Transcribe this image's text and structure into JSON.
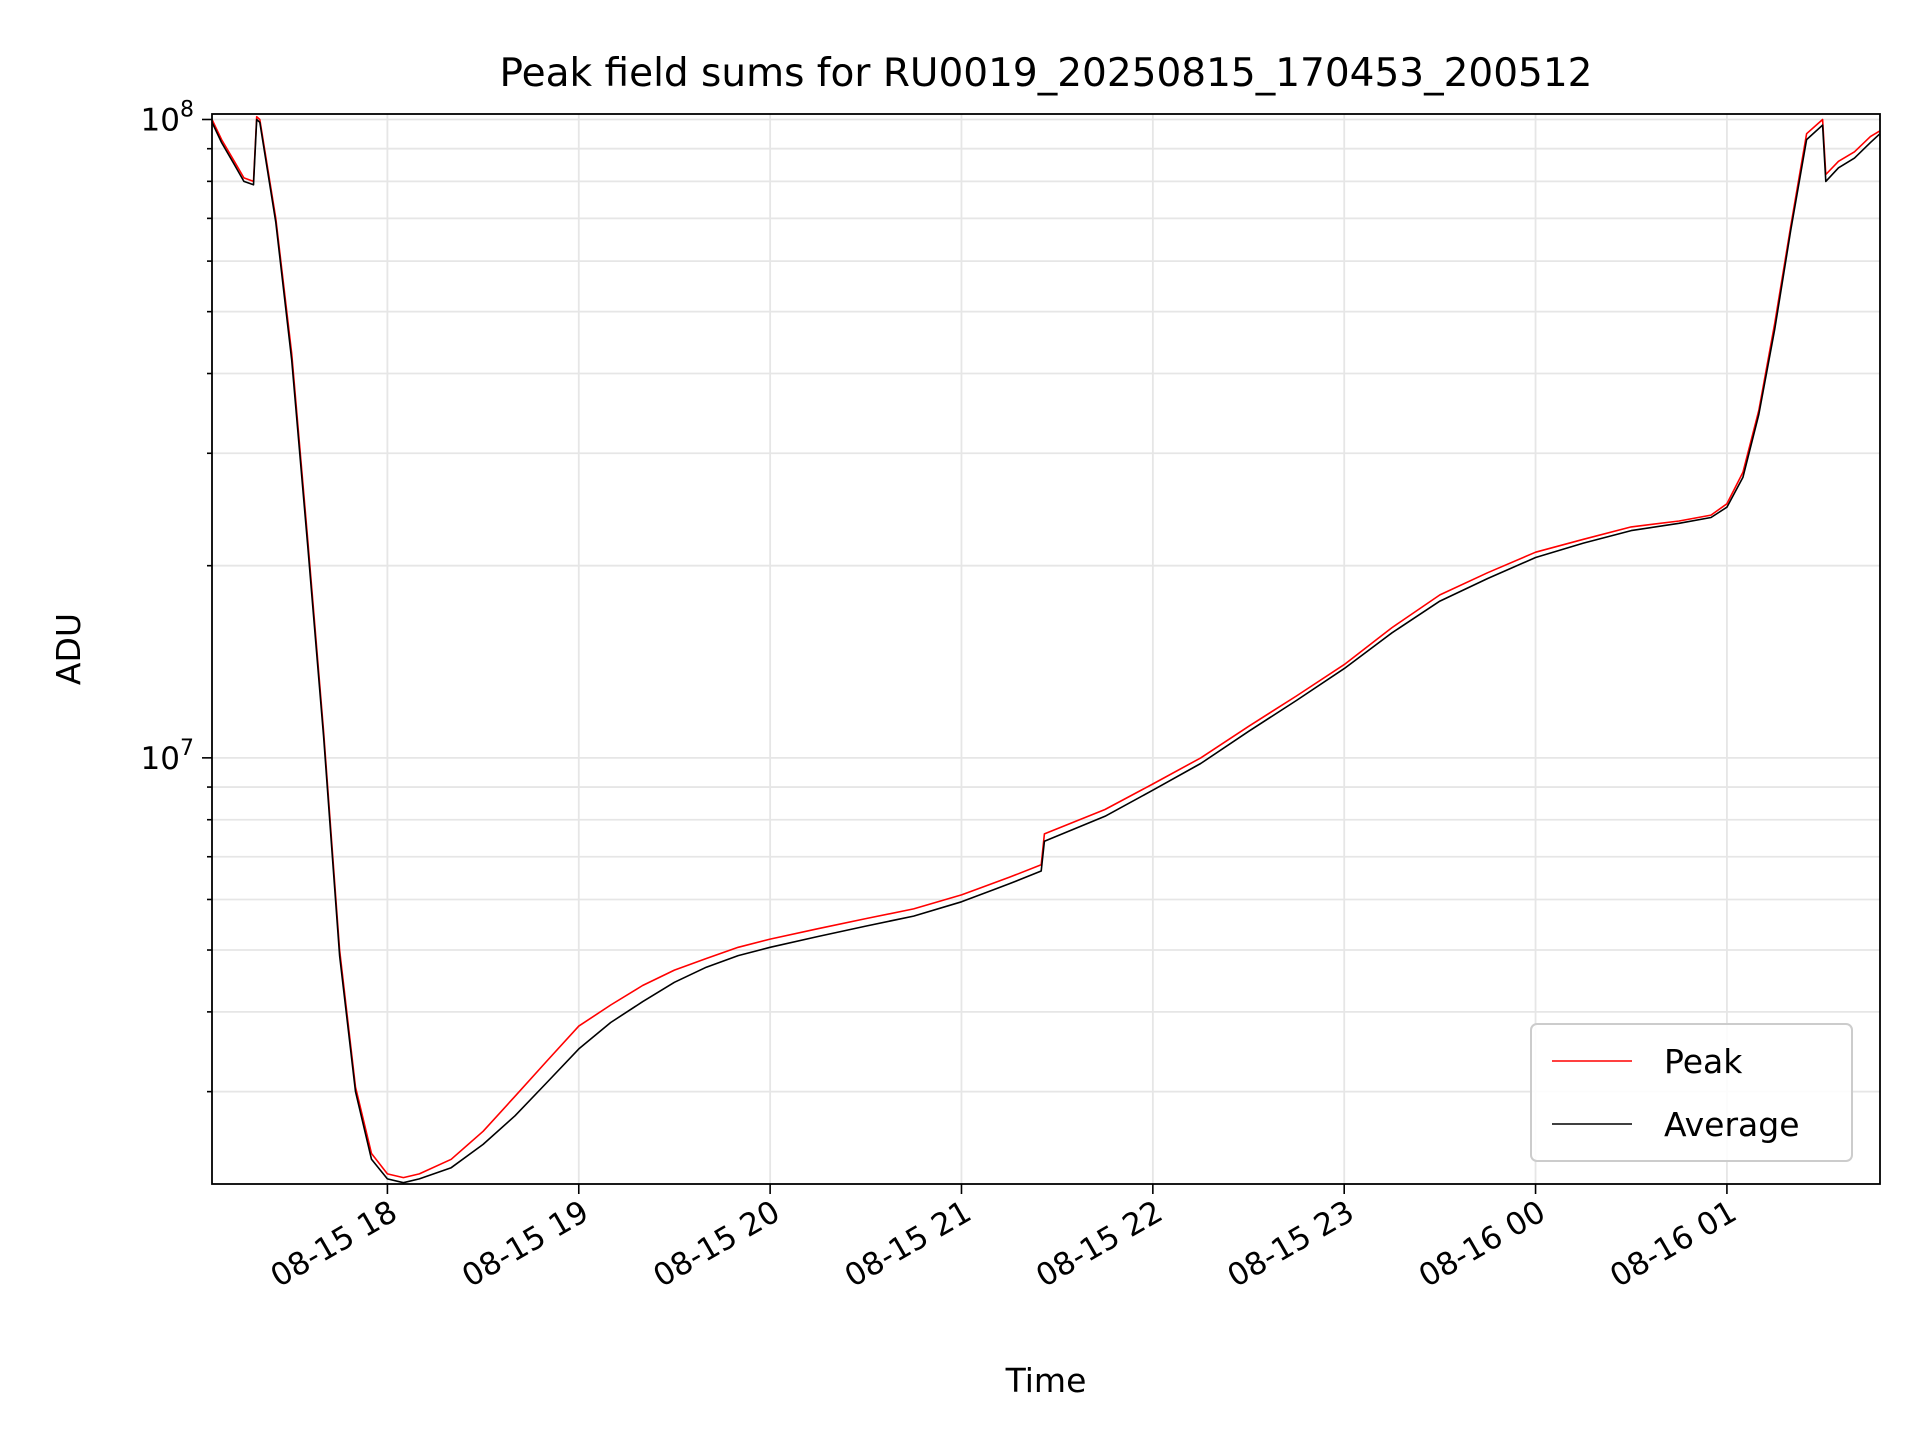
{
  "chart_data": {
    "type": "line",
    "title": "Peak field sums for RU0019_20250815_170453_200512",
    "xlabel": "Time",
    "ylabel": "ADU",
    "yscale": "log",
    "xlim": [
      "2025-08-15 17:05",
      "2025-08-16 01:48"
    ],
    "ylim": [
      2150000,
      102000000
    ],
    "grid": true,
    "legend_position": "lower-right",
    "x_tick_labels": [
      "08-15 18",
      "08-15 19",
      "08-15 20",
      "08-15 21",
      "08-15 22",
      "08-15 23",
      "08-16 00",
      "08-16 01"
    ],
    "x_ticks": [
      "2025-08-15 18:00",
      "2025-08-15 19:00",
      "2025-08-15 20:00",
      "2025-08-15 21:00",
      "2025-08-15 22:00",
      "2025-08-15 23:00",
      "2025-08-16 00:00",
      "2025-08-16 01:00"
    ],
    "y_tick_labels": [
      {
        "value": 10000000,
        "base": "10",
        "exp": "7"
      },
      {
        "value": 100000000,
        "base": "10",
        "exp": "8"
      }
    ],
    "x": [
      "2025-08-15 17:05",
      "2025-08-15 17:08",
      "2025-08-15 17:12",
      "2025-08-15 17:15",
      "2025-08-15 17:18",
      "2025-08-15 17:19",
      "2025-08-15 17:20",
      "2025-08-15 17:25",
      "2025-08-15 17:30",
      "2025-08-15 17:35",
      "2025-08-15 17:40",
      "2025-08-15 17:45",
      "2025-08-15 17:50",
      "2025-08-15 17:55",
      "2025-08-15 18:00",
      "2025-08-15 18:05",
      "2025-08-15 18:10",
      "2025-08-15 18:20",
      "2025-08-15 18:30",
      "2025-08-15 18:40",
      "2025-08-15 18:50",
      "2025-08-15 19:00",
      "2025-08-15 19:10",
      "2025-08-15 19:20",
      "2025-08-15 19:30",
      "2025-08-15 19:40",
      "2025-08-15 19:50",
      "2025-08-15 20:00",
      "2025-08-15 20:15",
      "2025-08-15 20:30",
      "2025-08-15 20:45",
      "2025-08-15 21:00",
      "2025-08-15 21:15",
      "2025-08-15 21:25",
      "2025-08-15 21:26",
      "2025-08-15 21:45",
      "2025-08-15 22:00",
      "2025-08-15 22:15",
      "2025-08-15 22:30",
      "2025-08-15 22:45",
      "2025-08-15 23:00",
      "2025-08-15 23:15",
      "2025-08-15 23:30",
      "2025-08-15 23:45",
      "2025-08-16 00:00",
      "2025-08-16 00:15",
      "2025-08-16 00:30",
      "2025-08-16 00:45",
      "2025-08-16 00:55",
      "2025-08-16 01:00",
      "2025-08-16 01:05",
      "2025-08-16 01:10",
      "2025-08-16 01:15",
      "2025-08-16 01:20",
      "2025-08-16 01:25",
      "2025-08-16 01:30",
      "2025-08-16 01:31",
      "2025-08-16 01:35",
      "2025-08-16 01:40",
      "2025-08-16 01:45",
      "2025-08-16 01:48"
    ],
    "series": [
      {
        "name": "Peak",
        "color": "#ff0000",
        "values": [
          100000000,
          93000000,
          86000000,
          81000000,
          80000000,
          101000000,
          100000000,
          70000000,
          43000000,
          22000000,
          11000000,
          5000000,
          3050000,
          2400000,
          2230000,
          2200000,
          2230000,
          2350000,
          2600000,
          2950000,
          3350000,
          3800000,
          4100000,
          4400000,
          4650000,
          4850000,
          5050000,
          5200000,
          5400000,
          5600000,
          5800000,
          6100000,
          6500000,
          6800000,
          7600000,
          8300000,
          9100000,
          10000000,
          11200000,
          12500000,
          14000000,
          16000000,
          18000000,
          19500000,
          21000000,
          22000000,
          23000000,
          23500000,
          24000000,
          25000000,
          28000000,
          35000000,
          48000000,
          68000000,
          95000000,
          100000000,
          82000000,
          86000000,
          89000000,
          94000000,
          96000000
        ]
      },
      {
        "name": "Average",
        "color": "#000000",
        "values": [
          99000000,
          92000000,
          85000000,
          80000000,
          79000000,
          100000000,
          99000000,
          69000000,
          42000000,
          21500000,
          10800000,
          4900000,
          3000000,
          2350000,
          2190000,
          2160000,
          2190000,
          2280000,
          2480000,
          2750000,
          3100000,
          3500000,
          3850000,
          4150000,
          4450000,
          4700000,
          4900000,
          5050000,
          5250000,
          5450000,
          5650000,
          5950000,
          6350000,
          6650000,
          7400000,
          8100000,
          8900000,
          9800000,
          11000000,
          12300000,
          13800000,
          15700000,
          17600000,
          19100000,
          20600000,
          21700000,
          22700000,
          23300000,
          23800000,
          24700000,
          27500000,
          34500000,
          47000000,
          67000000,
          93000000,
          98000000,
          80000000,
          84000000,
          87000000,
          92000000,
          95000000
        ]
      }
    ]
  }
}
